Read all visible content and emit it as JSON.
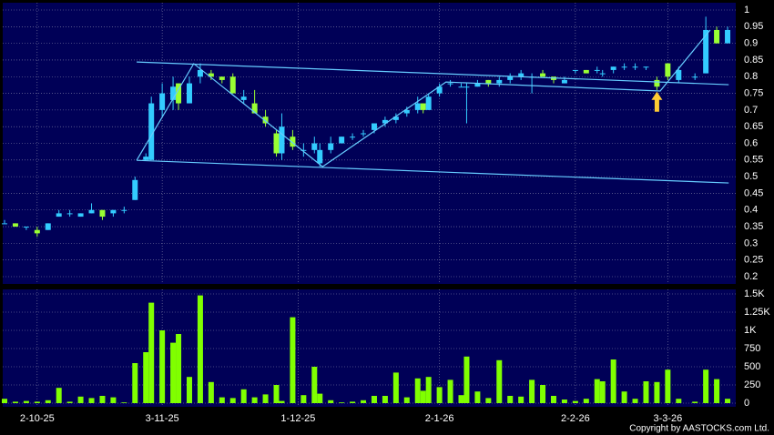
{
  "chart_data": {
    "type": "candlestick",
    "copyright": "Copyright by AASTOCKS.com Ltd.",
    "xlim": [
      0,
      134
    ],
    "xticks": [
      {
        "value": 6,
        "label": "2-10-25"
      },
      {
        "value": 29,
        "label": "3-11-25"
      },
      {
        "value": 54,
        "label": "1-12-25"
      },
      {
        "value": 80,
        "label": "2-1-26"
      },
      {
        "value": 105,
        "label": "2-2-26"
      },
      {
        "value": 122,
        "label": "3-3-26"
      }
    ],
    "ylim": [
      0.2,
      1
    ],
    "yticks": [
      1,
      0.95,
      0.9,
      0.85,
      0.8,
      0.75,
      0.7,
      0.65,
      0.6,
      0.55,
      0.5,
      0.45,
      0.4,
      0.35,
      0.3,
      0.25,
      0.2
    ],
    "volume_ylim": [
      0,
      1500
    ],
    "volume_yticks": [
      {
        "value": 1500,
        "label": "1.5K"
      },
      {
        "value": 1250,
        "label": "1.25K"
      },
      {
        "value": 1000,
        "label": "1K"
      },
      750,
      500,
      250,
      0
    ],
    "grid": true,
    "up_color": "#33ccff",
    "down_color": "#99ff33",
    "volume_color": "#80ff00",
    "trend_line_color": "#66ccff",
    "x": [
      0,
      2,
      4,
      6,
      8,
      10,
      12,
      14,
      16,
      18,
      20,
      22,
      24,
      26,
      27,
      29,
      31,
      32,
      34,
      36,
      38,
      40,
      42,
      44,
      46,
      48,
      50,
      51,
      53,
      55,
      57,
      58,
      60,
      62,
      64,
      66,
      68,
      70,
      72,
      74,
      76,
      77,
      78,
      80,
      82,
      84,
      85,
      87,
      89,
      91,
      93,
      95,
      97,
      99,
      101,
      103,
      105,
      107,
      109,
      110,
      112,
      114,
      116,
      118,
      120,
      122,
      124,
      127,
      129,
      131,
      133
    ],
    "open": [
      0.36,
      0.36,
      0.35,
      0.34,
      0.34,
      0.38,
      0.39,
      0.38,
      0.39,
      0.4,
      0.39,
      0.4,
      0.43,
      0.55,
      0.55,
      0.7,
      0.73,
      0.78,
      0.72,
      0.8,
      0.81,
      0.8,
      0.8,
      0.73,
      0.72,
      0.68,
      0.63,
      0.57,
      0.62,
      0.58,
      0.58,
      0.54,
      0.58,
      0.6,
      0.62,
      0.63,
      0.64,
      0.66,
      0.67,
      0.69,
      0.7,
      0.72,
      0.7,
      0.75,
      0.78,
      0.77,
      0.77,
      0.77,
      0.79,
      0.78,
      0.79,
      0.8,
      0.8,
      0.81,
      0.8,
      0.78,
      0.82,
      0.82,
      0.82,
      0.81,
      0.82,
      0.83,
      0.83,
      0.83,
      0.79,
      0.84,
      0.79,
      0.8,
      0.81,
      0.94,
      0.9
    ],
    "high": [
      0.37,
      0.36,
      0.35,
      0.35,
      0.36,
      0.4,
      0.4,
      0.39,
      0.42,
      0.4,
      0.4,
      0.41,
      0.5,
      0.57,
      0.74,
      0.78,
      0.8,
      0.78,
      0.8,
      0.84,
      0.82,
      0.8,
      0.81,
      0.76,
      0.76,
      0.7,
      0.64,
      0.69,
      0.64,
      0.6,
      0.62,
      0.6,
      0.62,
      0.62,
      0.63,
      0.64,
      0.66,
      0.68,
      0.69,
      0.71,
      0.74,
      0.72,
      0.75,
      0.78,
      0.79,
      0.78,
      0.78,
      0.79,
      0.79,
      0.8,
      0.81,
      0.82,
      0.81,
      0.82,
      0.8,
      0.8,
      0.82,
      0.82,
      0.83,
      0.82,
      0.83,
      0.84,
      0.84,
      0.83,
      0.8,
      0.84,
      0.83,
      0.81,
      0.98,
      0.95,
      0.95
    ],
    "low": [
      0.36,
      0.35,
      0.34,
      0.32,
      0.34,
      0.38,
      0.38,
      0.38,
      0.39,
      0.37,
      0.38,
      0.39,
      0.43,
      0.55,
      0.55,
      0.68,
      0.7,
      0.7,
      0.72,
      0.78,
      0.79,
      0.78,
      0.75,
      0.72,
      0.69,
      0.65,
      0.56,
      0.55,
      0.58,
      0.56,
      0.57,
      0.53,
      0.57,
      0.6,
      0.61,
      0.62,
      0.63,
      0.65,
      0.66,
      0.68,
      0.69,
      0.69,
      0.7,
      0.74,
      0.77,
      0.77,
      0.66,
      0.77,
      0.77,
      0.77,
      0.78,
      0.79,
      0.75,
      0.8,
      0.78,
      0.78,
      0.81,
      0.81,
      0.81,
      0.8,
      0.81,
      0.82,
      0.82,
      0.82,
      0.76,
      0.79,
      0.78,
      0.79,
      0.81,
      0.9,
      0.9
    ],
    "close": [
      0.36,
      0.35,
      0.35,
      0.33,
      0.36,
      0.39,
      0.39,
      0.39,
      0.4,
      0.38,
      0.4,
      0.4,
      0.49,
      0.56,
      0.72,
      0.75,
      0.77,
      0.72,
      0.78,
      0.82,
      0.8,
      0.79,
      0.75,
      0.74,
      0.69,
      0.66,
      0.57,
      0.65,
      0.59,
      0.58,
      0.6,
      0.58,
      0.6,
      0.62,
      0.62,
      0.63,
      0.66,
      0.67,
      0.68,
      0.7,
      0.72,
      0.7,
      0.74,
      0.77,
      0.78,
      0.77,
      0.77,
      0.78,
      0.78,
      0.79,
      0.8,
      0.81,
      0.8,
      0.8,
      0.79,
      0.79,
      0.82,
      0.81,
      0.82,
      0.81,
      0.83,
      0.83,
      0.83,
      0.83,
      0.77,
      0.8,
      0.82,
      0.8,
      0.94,
      0.9,
      0.94
    ],
    "volume": [
      60,
      20,
      30,
      20,
      40,
      210,
      20,
      90,
      70,
      100,
      80,
      10,
      550,
      700,
      1380,
      1000,
      830,
      950,
      360,
      1480,
      290,
      80,
      70,
      190,
      80,
      120,
      250,
      30,
      1180,
      110,
      500,
      130,
      40,
      10,
      20,
      40,
      100,
      100,
      420,
      80,
      340,
      170,
      360,
      220,
      320,
      110,
      640,
      160,
      70,
      590,
      100,
      90,
      320,
      250,
      100,
      50,
      30,
      60,
      330,
      300,
      600,
      160,
      60,
      300,
      290,
      460,
      60,
      20,
      460,
      330,
      60
    ],
    "trend_lines": [
      {
        "x": [
          24.3,
          133.2
        ],
        "y": [
          0.844,
          0.776
        ]
      },
      {
        "x": [
          24.3,
          133.2
        ],
        "y": [
          0.549,
          0.481
        ]
      },
      {
        "x": [
          24.3,
          34.8,
          58.5,
          81.2,
          120.6,
          129.8
        ],
        "y": [
          0.549,
          0.839,
          0.53,
          0.784,
          0.757,
          0.94
        ]
      }
    ],
    "signal_marker": {
      "x": 120,
      "y": 0.755,
      "color": "#ffcc33"
    }
  }
}
